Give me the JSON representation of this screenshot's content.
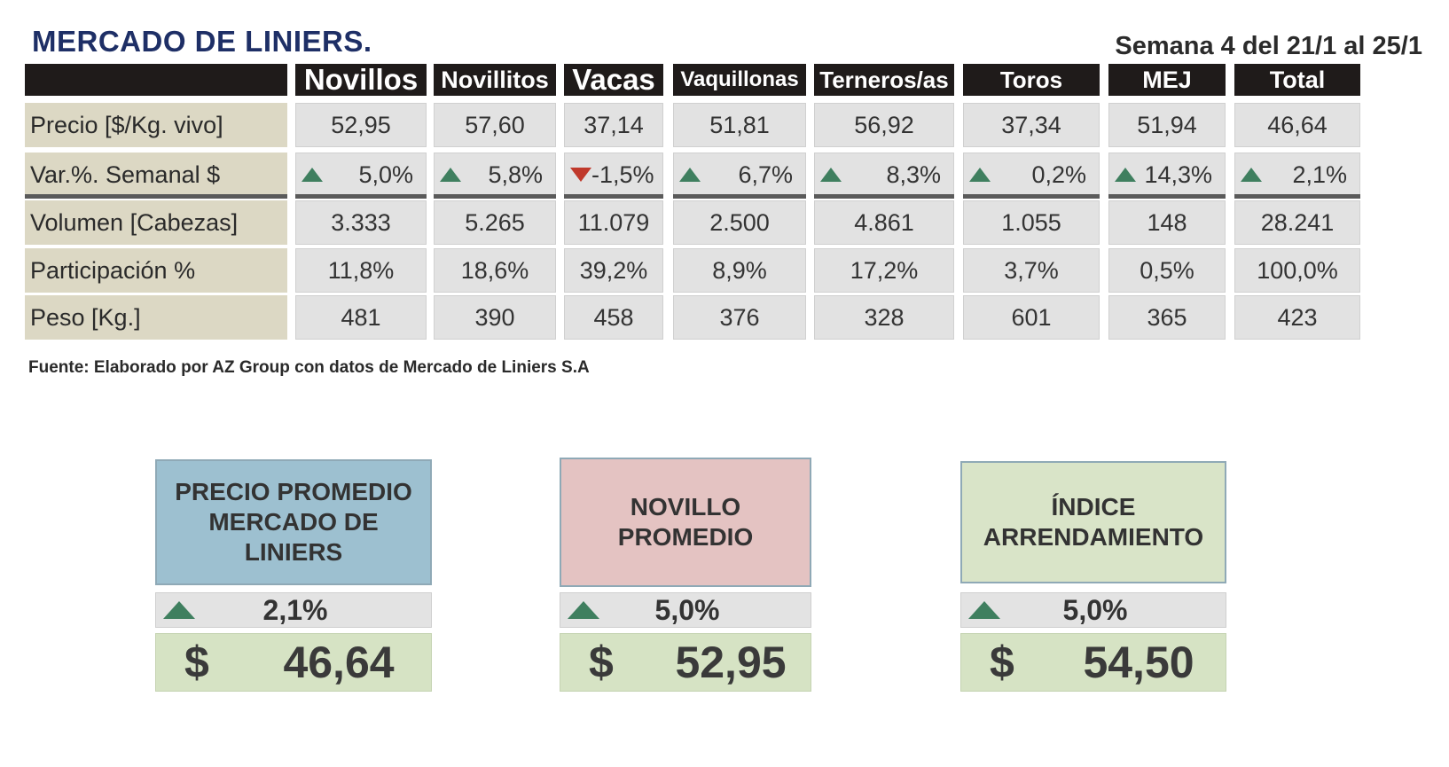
{
  "header": {
    "title": "MERCADO DE LINIERS.",
    "week": "Semana 4 del 21/1 al 25/1"
  },
  "table": {
    "columns": [
      "Novillos",
      "Novillitos",
      "Vacas",
      "Vaquillonas",
      "Terneros/as",
      "Toros",
      "MEJ",
      "Total"
    ],
    "rows": [
      {
        "label": "Precio [$/Kg. vivo]",
        "values": [
          "52,95",
          "57,60",
          "37,14",
          "51,81",
          "56,92",
          "37,34",
          "51,94",
          "46,64"
        ]
      },
      {
        "label": "Var.%. Semanal $",
        "values": [
          "5,0%",
          "5,8%",
          "-1,5%",
          "6,7%",
          "8,3%",
          "0,2%",
          "14,3%",
          "2,1%"
        ],
        "directions": [
          "up",
          "up",
          "down",
          "up",
          "up",
          "up",
          "up",
          "up"
        ]
      },
      {
        "label": "Volumen [Cabezas]",
        "values": [
          "3.333",
          "5.265",
          "11.079",
          "2.500",
          "4.861",
          "1.055",
          "148",
          "28.241"
        ]
      },
      {
        "label": "Participación %",
        "values": [
          "11,8%",
          "18,6%",
          "39,2%",
          "8,9%",
          "17,2%",
          "3,7%",
          "0,5%",
          "100,0%"
        ]
      },
      {
        "label": "Peso  [Kg.]",
        "values": [
          "481",
          "390",
          "458",
          "376",
          "328",
          "601",
          "365",
          "423"
        ]
      }
    ]
  },
  "source": "Fuente: Elaborado por AZ Group con datos de Mercado de Liniers S.A",
  "summary": [
    {
      "title_lines": [
        "PRECIO PROMEDIO",
        "MERCADO DE",
        "LINIERS"
      ],
      "variation": "2,1%",
      "direction": "up",
      "currency": "$",
      "price": "46,64",
      "color": "#9dc0d0"
    },
    {
      "title_lines": [
        "NOVILLO",
        "PROMEDIO"
      ],
      "variation": "5,0%",
      "direction": "up",
      "currency": "$",
      "price": "52,95",
      "color": "#e4c3c2"
    },
    {
      "title_lines": [
        "ÍNDICE",
        "ARRENDAMIENTO"
      ],
      "variation": "5,0%",
      "direction": "up",
      "currency": "$",
      "price": "54,50",
      "color": "#d9e4c8"
    }
  ]
}
